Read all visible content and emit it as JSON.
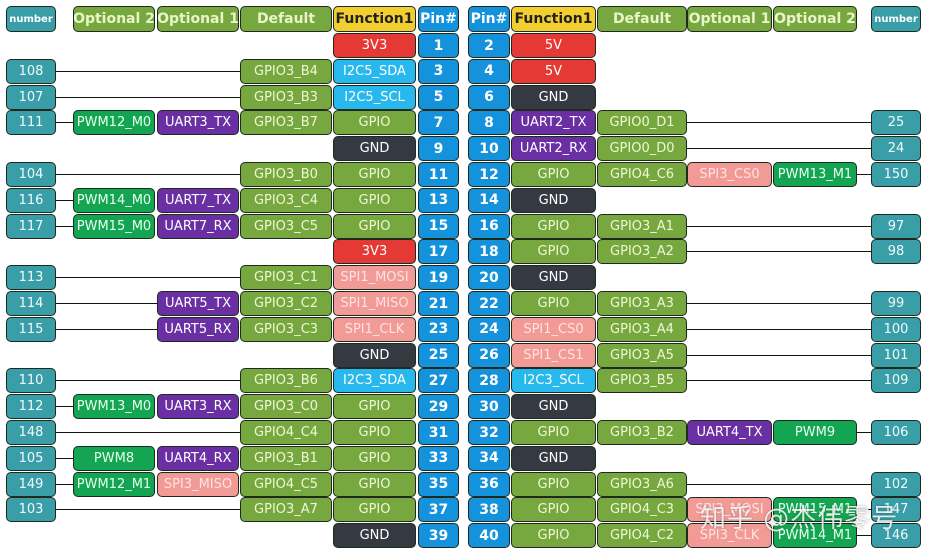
{
  "headers": {
    "left": [
      "number",
      "Optional 2",
      "Optional 1",
      "Default",
      "Function1",
      "Pin#"
    ],
    "right": [
      "Pin#",
      "Function1",
      "Default",
      "Optional 1",
      "Optional 2",
      "number"
    ]
  },
  "colors": {
    "teal": "#3a9ea8",
    "olive": "#77a83f",
    "green": "#13a552",
    "purple": "#6a2fa3",
    "salmon": "#f29a96",
    "red": "#e53935",
    "dark": "#343942",
    "cyan": "#27b8ee",
    "blue": "#1492dc",
    "yellow": "#f2cf2f"
  },
  "left_rows": [
    {
      "pin": "1",
      "func": "3V3",
      "func_type": "red",
      "default": "",
      "opt1": "",
      "opt1_type": "",
      "opt2": "",
      "number": ""
    },
    {
      "pin": "3",
      "func": "I2C5_SDA",
      "func_type": "cyan",
      "default": "GPIO3_B4",
      "opt1": "",
      "opt1_type": "",
      "opt2": "",
      "number": "108"
    },
    {
      "pin": "5",
      "func": "I2C5_SCL",
      "func_type": "cyan",
      "default": "GPIO3_B3",
      "opt1": "",
      "opt1_type": "",
      "opt2": "",
      "number": "107"
    },
    {
      "pin": "7",
      "func": "GPIO",
      "func_type": "olive",
      "default": "GPIO3_B7",
      "opt1": "UART3_TX",
      "opt1_type": "purple",
      "opt2": "PWM12_M0",
      "number": "111"
    },
    {
      "pin": "9",
      "func": "GND",
      "func_type": "dark",
      "default": "",
      "opt1": "",
      "opt1_type": "",
      "opt2": "",
      "number": ""
    },
    {
      "pin": "11",
      "func": "GPIO",
      "func_type": "olive",
      "default": "GPIO3_B0",
      "opt1": "",
      "opt1_type": "",
      "opt2": "",
      "number": "104"
    },
    {
      "pin": "13",
      "func": "GPIO",
      "func_type": "olive",
      "default": "GPIO3_C4",
      "opt1": "UART7_TX",
      "opt1_type": "purple",
      "opt2": "PWM14_M0",
      "number": "116"
    },
    {
      "pin": "15",
      "func": "GPIO",
      "func_type": "olive",
      "default": "GPIO3_C5",
      "opt1": "UART7_RX",
      "opt1_type": "purple",
      "opt2": "PWM15_M0",
      "number": "117"
    },
    {
      "pin": "17",
      "func": "3V3",
      "func_type": "red",
      "default": "",
      "opt1": "",
      "opt1_type": "",
      "opt2": "",
      "number": ""
    },
    {
      "pin": "19",
      "func": "SPI1_MOSI",
      "func_type": "salmon",
      "default": "GPIO3_C1",
      "opt1": "",
      "opt1_type": "",
      "opt2": "",
      "number": "113"
    },
    {
      "pin": "21",
      "func": "SPI1_MISO",
      "func_type": "salmon",
      "default": "GPIO3_C2",
      "opt1": "UART5_TX",
      "opt1_type": "purple",
      "opt2": "",
      "number": "114"
    },
    {
      "pin": "23",
      "func": "SPI1_CLK",
      "func_type": "salmon",
      "default": "GPIO3_C3",
      "opt1": "UART5_RX",
      "opt1_type": "purple",
      "opt2": "",
      "number": "115"
    },
    {
      "pin": "25",
      "func": "GND",
      "func_type": "dark",
      "default": "",
      "opt1": "",
      "opt1_type": "",
      "opt2": "",
      "number": ""
    },
    {
      "pin": "27",
      "func": "I2C3_SDA",
      "func_type": "cyan",
      "default": "GPIO3_B6",
      "opt1": "",
      "opt1_type": "",
      "opt2": "",
      "number": "110"
    },
    {
      "pin": "29",
      "func": "GPIO",
      "func_type": "olive",
      "default": "GPIO3_C0",
      "opt1": "UART3_RX",
      "opt1_type": "purple",
      "opt2": "PWM13_M0",
      "number": "112"
    },
    {
      "pin": "31",
      "func": "GPIO",
      "func_type": "olive",
      "default": "GPIO4_C4",
      "opt1": "",
      "opt1_type": "",
      "opt2": "",
      "number": "148"
    },
    {
      "pin": "33",
      "func": "GPIO",
      "func_type": "olive",
      "default": "GPIO3_B1",
      "opt1": "UART4_RX",
      "opt1_type": "purple",
      "opt2": "PWM8",
      "number": "105"
    },
    {
      "pin": "35",
      "func": "GPIO",
      "func_type": "olive",
      "default": "GPIO4_C5",
      "opt1": "SPI3_MISO",
      "opt1_type": "salmon",
      "opt2": "PWM12_M1",
      "number": "149"
    },
    {
      "pin": "37",
      "func": "GPIO",
      "func_type": "olive",
      "default": "GPIO3_A7",
      "opt1": "",
      "opt1_type": "",
      "opt2": "",
      "number": "103"
    },
    {
      "pin": "39",
      "func": "GND",
      "func_type": "dark",
      "default": "",
      "opt1": "",
      "opt1_type": "",
      "opt2": "",
      "number": ""
    }
  ],
  "right_rows": [
    {
      "pin": "2",
      "func": "5V",
      "func_type": "red",
      "default": "",
      "opt1": "",
      "opt1_type": "",
      "opt2": "",
      "number": ""
    },
    {
      "pin": "4",
      "func": "5V",
      "func_type": "red",
      "default": "",
      "opt1": "",
      "opt1_type": "",
      "opt2": "",
      "number": ""
    },
    {
      "pin": "6",
      "func": "GND",
      "func_type": "dark",
      "default": "",
      "opt1": "",
      "opt1_type": "",
      "opt2": "",
      "number": ""
    },
    {
      "pin": "8",
      "func": "UART2_TX",
      "func_type": "purple",
      "default": "GPIO0_D1",
      "opt1": "",
      "opt1_type": "",
      "opt2": "",
      "number": "25"
    },
    {
      "pin": "10",
      "func": "UART2_RX",
      "func_type": "purple",
      "default": "GPIO0_D0",
      "opt1": "",
      "opt1_type": "",
      "opt2": "",
      "number": "24"
    },
    {
      "pin": "12",
      "func": "GPIO",
      "func_type": "olive",
      "default": "GPIO4_C6",
      "opt1": "SPI3_CS0",
      "opt1_type": "salmon",
      "opt2": "PWM13_M1",
      "number": "150"
    },
    {
      "pin": "14",
      "func": "GND",
      "func_type": "dark",
      "default": "",
      "opt1": "",
      "opt1_type": "",
      "opt2": "",
      "number": ""
    },
    {
      "pin": "16",
      "func": "GPIO",
      "func_type": "olive",
      "default": "GPIO3_A1",
      "opt1": "",
      "opt1_type": "",
      "opt2": "",
      "number": "97"
    },
    {
      "pin": "18",
      "func": "GPIO",
      "func_type": "olive",
      "default": "GPIO3_A2",
      "opt1": "",
      "opt1_type": "",
      "opt2": "",
      "number": "98"
    },
    {
      "pin": "20",
      "func": "GND",
      "func_type": "dark",
      "default": "",
      "opt1": "",
      "opt1_type": "",
      "opt2": "",
      "number": ""
    },
    {
      "pin": "22",
      "func": "GPIO",
      "func_type": "olive",
      "default": "GPIO3_A3",
      "opt1": "",
      "opt1_type": "",
      "opt2": "",
      "number": "99"
    },
    {
      "pin": "24",
      "func": "SPI1_CS0",
      "func_type": "salmon",
      "default": "GPIO3_A4",
      "opt1": "",
      "opt1_type": "",
      "opt2": "",
      "number": "100"
    },
    {
      "pin": "26",
      "func": "SPI1_CS1",
      "func_type": "salmon",
      "default": "GPIO3_A5",
      "opt1": "",
      "opt1_type": "",
      "opt2": "",
      "number": "101"
    },
    {
      "pin": "28",
      "func": "I2C3_SCL",
      "func_type": "cyan",
      "default": "GPIO3_B5",
      "opt1": "",
      "opt1_type": "",
      "opt2": "",
      "number": "109"
    },
    {
      "pin": "30",
      "func": "GND",
      "func_type": "dark",
      "default": "",
      "opt1": "",
      "opt1_type": "",
      "opt2": "",
      "number": ""
    },
    {
      "pin": "32",
      "func": "GPIO",
      "func_type": "olive",
      "default": "GPIO3_B2",
      "opt1": "UART4_TX",
      "opt1_type": "purple",
      "opt2": "PWM9",
      "number": "106"
    },
    {
      "pin": "34",
      "func": "GND",
      "func_type": "dark",
      "default": "",
      "opt1": "",
      "opt1_type": "",
      "opt2": "",
      "number": ""
    },
    {
      "pin": "36",
      "func": "GPIO",
      "func_type": "olive",
      "default": "GPIO3_A6",
      "opt1": "",
      "opt1_type": "",
      "opt2": "",
      "number": "102"
    },
    {
      "pin": "38",
      "func": "GPIO",
      "func_type": "olive",
      "default": "GPIO4_C3",
      "opt1": "SPI3_MOSI",
      "opt1_type": "salmon",
      "opt2": "PWM15_M1",
      "number": "147"
    },
    {
      "pin": "40",
      "func": "GPIO",
      "func_type": "olive",
      "default": "GPIO4_C2",
      "opt1": "SPI3_CLK",
      "opt1_type": "salmon",
      "opt2": "PWM14_M1",
      "number": "146"
    }
  ],
  "watermark": "知乎 @杰伟零号"
}
